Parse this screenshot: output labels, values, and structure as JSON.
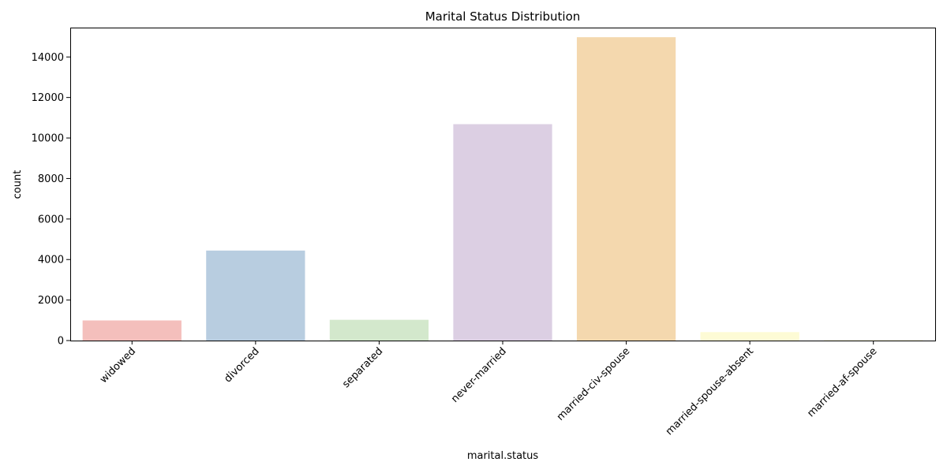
{
  "chart_data": {
    "type": "bar",
    "title": "Marital Status Distribution",
    "xlabel": "marital.status",
    "ylabel": "count",
    "categories": [
      "widowed",
      "divorced",
      "separated",
      "never-married",
      "married-civ-spouse",
      "married-spouse-absent",
      "married-af-spouse"
    ],
    "values": [
      993,
      4443,
      1025,
      10683,
      14976,
      418,
      23
    ],
    "colors": [
      "#f4bfbc",
      "#b8cde0",
      "#d3e8cc",
      "#dccfe3",
      "#f4d8ae",
      "#fdfbd5",
      "#fdfbd5"
    ],
    "ylim": [
      0,
      15450
    ],
    "yticks": [
      0,
      2000,
      4000,
      6000,
      8000,
      10000,
      12000,
      14000
    ],
    "ytick_labels": [
      "0",
      "2000",
      "4000",
      "6000",
      "8000",
      "10000",
      "12000",
      "14000"
    ],
    "grid": false,
    "legend": "none"
  }
}
